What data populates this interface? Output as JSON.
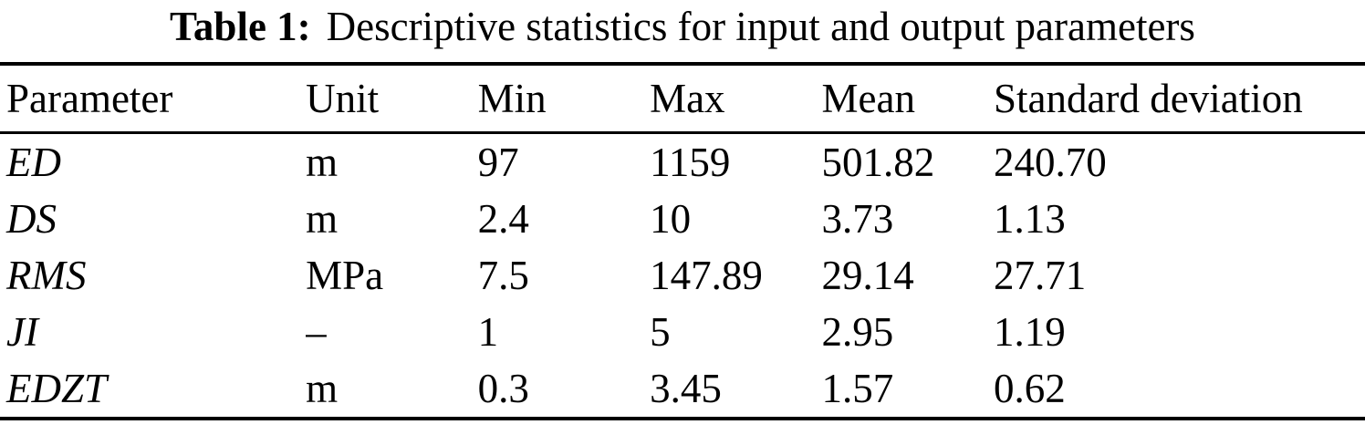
{
  "colors": {
    "text": "#000000",
    "background": "#ffffff",
    "rule": "#000000"
  },
  "table": {
    "caption": {
      "label": "Table 1:",
      "text": "Descriptive statistics for input and output parameters"
    },
    "columns": [
      "Parameter",
      "Unit",
      "Min",
      "Max",
      "Mean",
      "Standard deviation"
    ],
    "rows": [
      {
        "parameter": "ED",
        "unit": "m",
        "min": "97",
        "max": "1159",
        "mean": "501.82",
        "std": "240.70"
      },
      {
        "parameter": "DS",
        "unit": "m",
        "min": "2.4",
        "max": "10",
        "mean": "3.73",
        "std": "1.13"
      },
      {
        "parameter": "RMS",
        "unit": "MPa",
        "min": "7.5",
        "max": "147.89",
        "mean": "29.14",
        "std": "27.71"
      },
      {
        "parameter": "JI",
        "unit": "–",
        "min": "1",
        "max": "5",
        "mean": "2.95",
        "std": "1.19"
      },
      {
        "parameter": "EDZT",
        "unit": "m",
        "min": "0.3",
        "max": "3.45",
        "mean": "1.57",
        "std": "0.62"
      }
    ]
  },
  "chart_data": {
    "type": "table",
    "title": "Table 1: Descriptive statistics for input and output parameters",
    "columns": [
      "Parameter",
      "Unit",
      "Min",
      "Max",
      "Mean",
      "Standard deviation"
    ],
    "rows": [
      [
        "ED",
        "m",
        97,
        1159,
        501.82,
        240.7
      ],
      [
        "DS",
        "m",
        2.4,
        10,
        3.73,
        1.13
      ],
      [
        "RMS",
        "MPa",
        7.5,
        147.89,
        29.14,
        27.71
      ],
      [
        "JI",
        "–",
        1,
        5,
        2.95,
        1.19
      ],
      [
        "EDZT",
        "m",
        0.3,
        3.45,
        1.57,
        0.62
      ]
    ]
  }
}
